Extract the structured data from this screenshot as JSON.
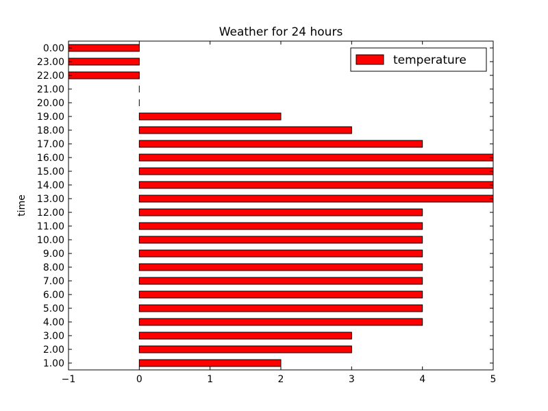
{
  "chart_data": {
    "type": "bar",
    "orientation": "horizontal",
    "title": "Weather for 24 hours",
    "xlabel": "",
    "ylabel": "time",
    "xlim": [
      -1,
      5
    ],
    "xticks": [
      "−1",
      "0",
      "1",
      "2",
      "3",
      "4",
      "5"
    ],
    "grid": false,
    "legend_position": "top-right",
    "categories": [
      "1.00",
      "2.00",
      "3.00",
      "4.00",
      "5.00",
      "6.00",
      "7.00",
      "8.00",
      "9.00",
      "10.00",
      "11.00",
      "12.00",
      "13.00",
      "14.00",
      "15.00",
      "16.00",
      "17.00",
      "18.00",
      "19.00",
      "20.00",
      "21.00",
      "22.00",
      "23.00",
      "0.00"
    ],
    "series": [
      {
        "name": "temperature",
        "color": "#ff0000",
        "values": [
          2,
          3,
          3,
          4,
          4,
          4,
          4,
          4,
          4,
          4,
          4,
          4,
          5,
          5,
          5,
          5,
          4,
          3,
          2,
          0,
          0,
          -1,
          -1,
          -1
        ]
      }
    ]
  }
}
